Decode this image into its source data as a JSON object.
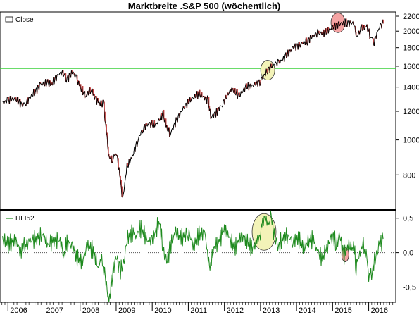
{
  "chart_data": [
    {
      "type": "line",
      "title": "Marktbreite .S&P 500 (wöchentlich)",
      "ylabel": "",
      "y_scale": "log",
      "ylim": [
        640,
        2260
      ],
      "y_ticks": [
        "800",
        "1000",
        "1200",
        "1400",
        "1600",
        "1800",
        "2000",
        "2200"
      ],
      "series": [
        {
          "name": "Close",
          "color": "#000000",
          "x": [
            2005.85,
            2006.0,
            2006.2,
            2006.4,
            2006.5,
            2006.75,
            2006.9,
            2007.1,
            2007.2,
            2007.4,
            2007.55,
            2007.62,
            2007.8,
            2007.9,
            2008.0,
            2008.15,
            2008.3,
            2008.4,
            2008.5,
            2008.65,
            2008.75,
            2008.8,
            2008.9,
            2009.0,
            2009.1,
            2009.18,
            2009.3,
            2009.45,
            2009.6,
            2009.75,
            2009.9,
            2010.1,
            2010.3,
            2010.4,
            2010.5,
            2010.7,
            2010.9,
            2011.1,
            2011.3,
            2011.55,
            2011.62,
            2011.8,
            2011.95,
            2012.2,
            2012.4,
            2012.6,
            2012.85,
            2013.0,
            2013.2,
            2013.4,
            2013.5,
            2013.7,
            2013.9,
            2014.1,
            2014.3,
            2014.5,
            2014.6,
            2014.8,
            2015.0,
            2015.2,
            2015.4,
            2015.6,
            2015.65,
            2015.8,
            2015.95,
            2016.05,
            2016.15,
            2016.3,
            2016.4
          ],
          "y": [
            1265,
            1285,
            1300,
            1250,
            1270,
            1360,
            1420,
            1440,
            1420,
            1520,
            1540,
            1470,
            1540,
            1480,
            1400,
            1320,
            1390,
            1320,
            1270,
            1250,
            1000,
            900,
            880,
            930,
            800,
            683,
            840,
            900,
            1000,
            1080,
            1110,
            1100,
            1180,
            1080,
            1040,
            1150,
            1240,
            1300,
            1340,
            1290,
            1150,
            1200,
            1260,
            1390,
            1320,
            1400,
            1420,
            1460,
            1560,
            1630,
            1630,
            1700,
            1800,
            1840,
            1880,
            1960,
            1970,
            1980,
            2050,
            2100,
            2110,
            2100,
            1920,
            2030,
            2050,
            1940,
            1870,
            2070,
            2100
          ]
        }
      ],
      "horizontal_line": {
        "value": 1576,
        "color": "#39d039"
      },
      "highlights": [
        {
          "x": 2013.2,
          "y": 1560,
          "fill": "#f3f3b8"
        },
        {
          "x": 2015.15,
          "y": 2110,
          "fill": "#f4a3a3"
        }
      ],
      "legend": {
        "position": "top-left",
        "entries": [
          "Close"
        ]
      }
    },
    {
      "type": "line",
      "title": "",
      "ylim": [
        -0.72,
        0.62
      ],
      "y_ticks": [
        "0,5",
        "0,0",
        "-0,5"
      ],
      "y_tick_values": [
        0.5,
        0.0,
        -0.5
      ],
      "series": [
        {
          "name": "HLI52",
          "color": "#1e8a1e",
          "x": [
            2005.85,
            2006.05,
            2006.2,
            2006.35,
            2006.45,
            2006.6,
            2006.8,
            2007.0,
            2007.1,
            2007.3,
            2007.45,
            2007.55,
            2007.62,
            2007.75,
            2007.9,
            2008.05,
            2008.2,
            2008.35,
            2008.5,
            2008.6,
            2008.7,
            2008.75,
            2008.8,
            2008.9,
            2009.0,
            2009.1,
            2009.2,
            2009.3,
            2009.45,
            2009.55,
            2009.7,
            2009.9,
            2010.05,
            2010.2,
            2010.3,
            2010.4,
            2010.5,
            2010.65,
            2010.8,
            2011.0,
            2011.15,
            2011.3,
            2011.45,
            2011.55,
            2011.6,
            2011.7,
            2011.85,
            2012.0,
            2012.15,
            2012.3,
            2012.45,
            2012.6,
            2012.75,
            2012.9,
            2013.0,
            2013.1,
            2013.2,
            2013.3,
            2013.4,
            2013.5,
            2013.7,
            2013.9,
            2014.05,
            2014.2,
            2014.3,
            2014.45,
            2014.55,
            2014.7,
            2014.8,
            2014.9,
            2015.0,
            2015.1,
            2015.2,
            2015.3,
            2015.45,
            2015.6,
            2015.65,
            2015.75,
            2015.85,
            2015.95,
            2016.0,
            2016.1,
            2016.2,
            2016.3,
            2016.4
          ],
          "y": [
            0.18,
            0.12,
            0.2,
            0.02,
            0.08,
            0.16,
            0.22,
            0.25,
            0.1,
            0.2,
            0.18,
            -0.05,
            0.12,
            0.15,
            -0.05,
            -0.15,
            0.1,
            0.05,
            -0.2,
            -0.1,
            -0.4,
            -0.55,
            -0.72,
            -0.3,
            -0.05,
            -0.25,
            -0.2,
            0.2,
            0.3,
            0.25,
            0.35,
            0.15,
            0.25,
            0.45,
            0.05,
            -0.15,
            0.1,
            0.3,
            0.2,
            0.3,
            0.1,
            0.25,
            0.3,
            -0.05,
            -0.22,
            0.05,
            0.18,
            0.35,
            0.2,
            0.05,
            0.25,
            0.2,
            0.05,
            0.15,
            0.3,
            0.55,
            0.4,
            0.5,
            0.2,
            0.1,
            0.25,
            0.18,
            0.22,
            0.05,
            0.15,
            0.2,
            0.08,
            -0.1,
            0.0,
            0.15,
            0.28,
            0.1,
            0.25,
            -0.05,
            0.1,
            0.05,
            -0.2,
            0.0,
            0.1,
            -0.1,
            -0.35,
            -0.25,
            -0.05,
            0.1,
            0.2
          ]
        }
      ],
      "zero_line": {
        "value": 0.0,
        "style": "dotted"
      },
      "highlights": [
        {
          "x": 2013.1,
          "y": 0.3,
          "fill": "#f3f3b8"
        },
        {
          "x": 2015.35,
          "y": -0.03,
          "fill": "#f4a3a3"
        }
      ],
      "legend": {
        "position": "top-left",
        "entries": [
          "HLI52"
        ]
      }
    }
  ],
  "x_axis": {
    "labels": [
      "2006",
      "2007",
      "2008",
      "2009",
      "2010",
      "2011",
      "2012",
      "2013",
      "2014",
      "2015",
      "2016"
    ],
    "range": [
      2005.78,
      2016.75
    ]
  },
  "colors": {
    "up_candle": "#ffffff",
    "down_candle": "#c04040",
    "grid": "#c8c8c8",
    "background": "#ffffff"
  }
}
